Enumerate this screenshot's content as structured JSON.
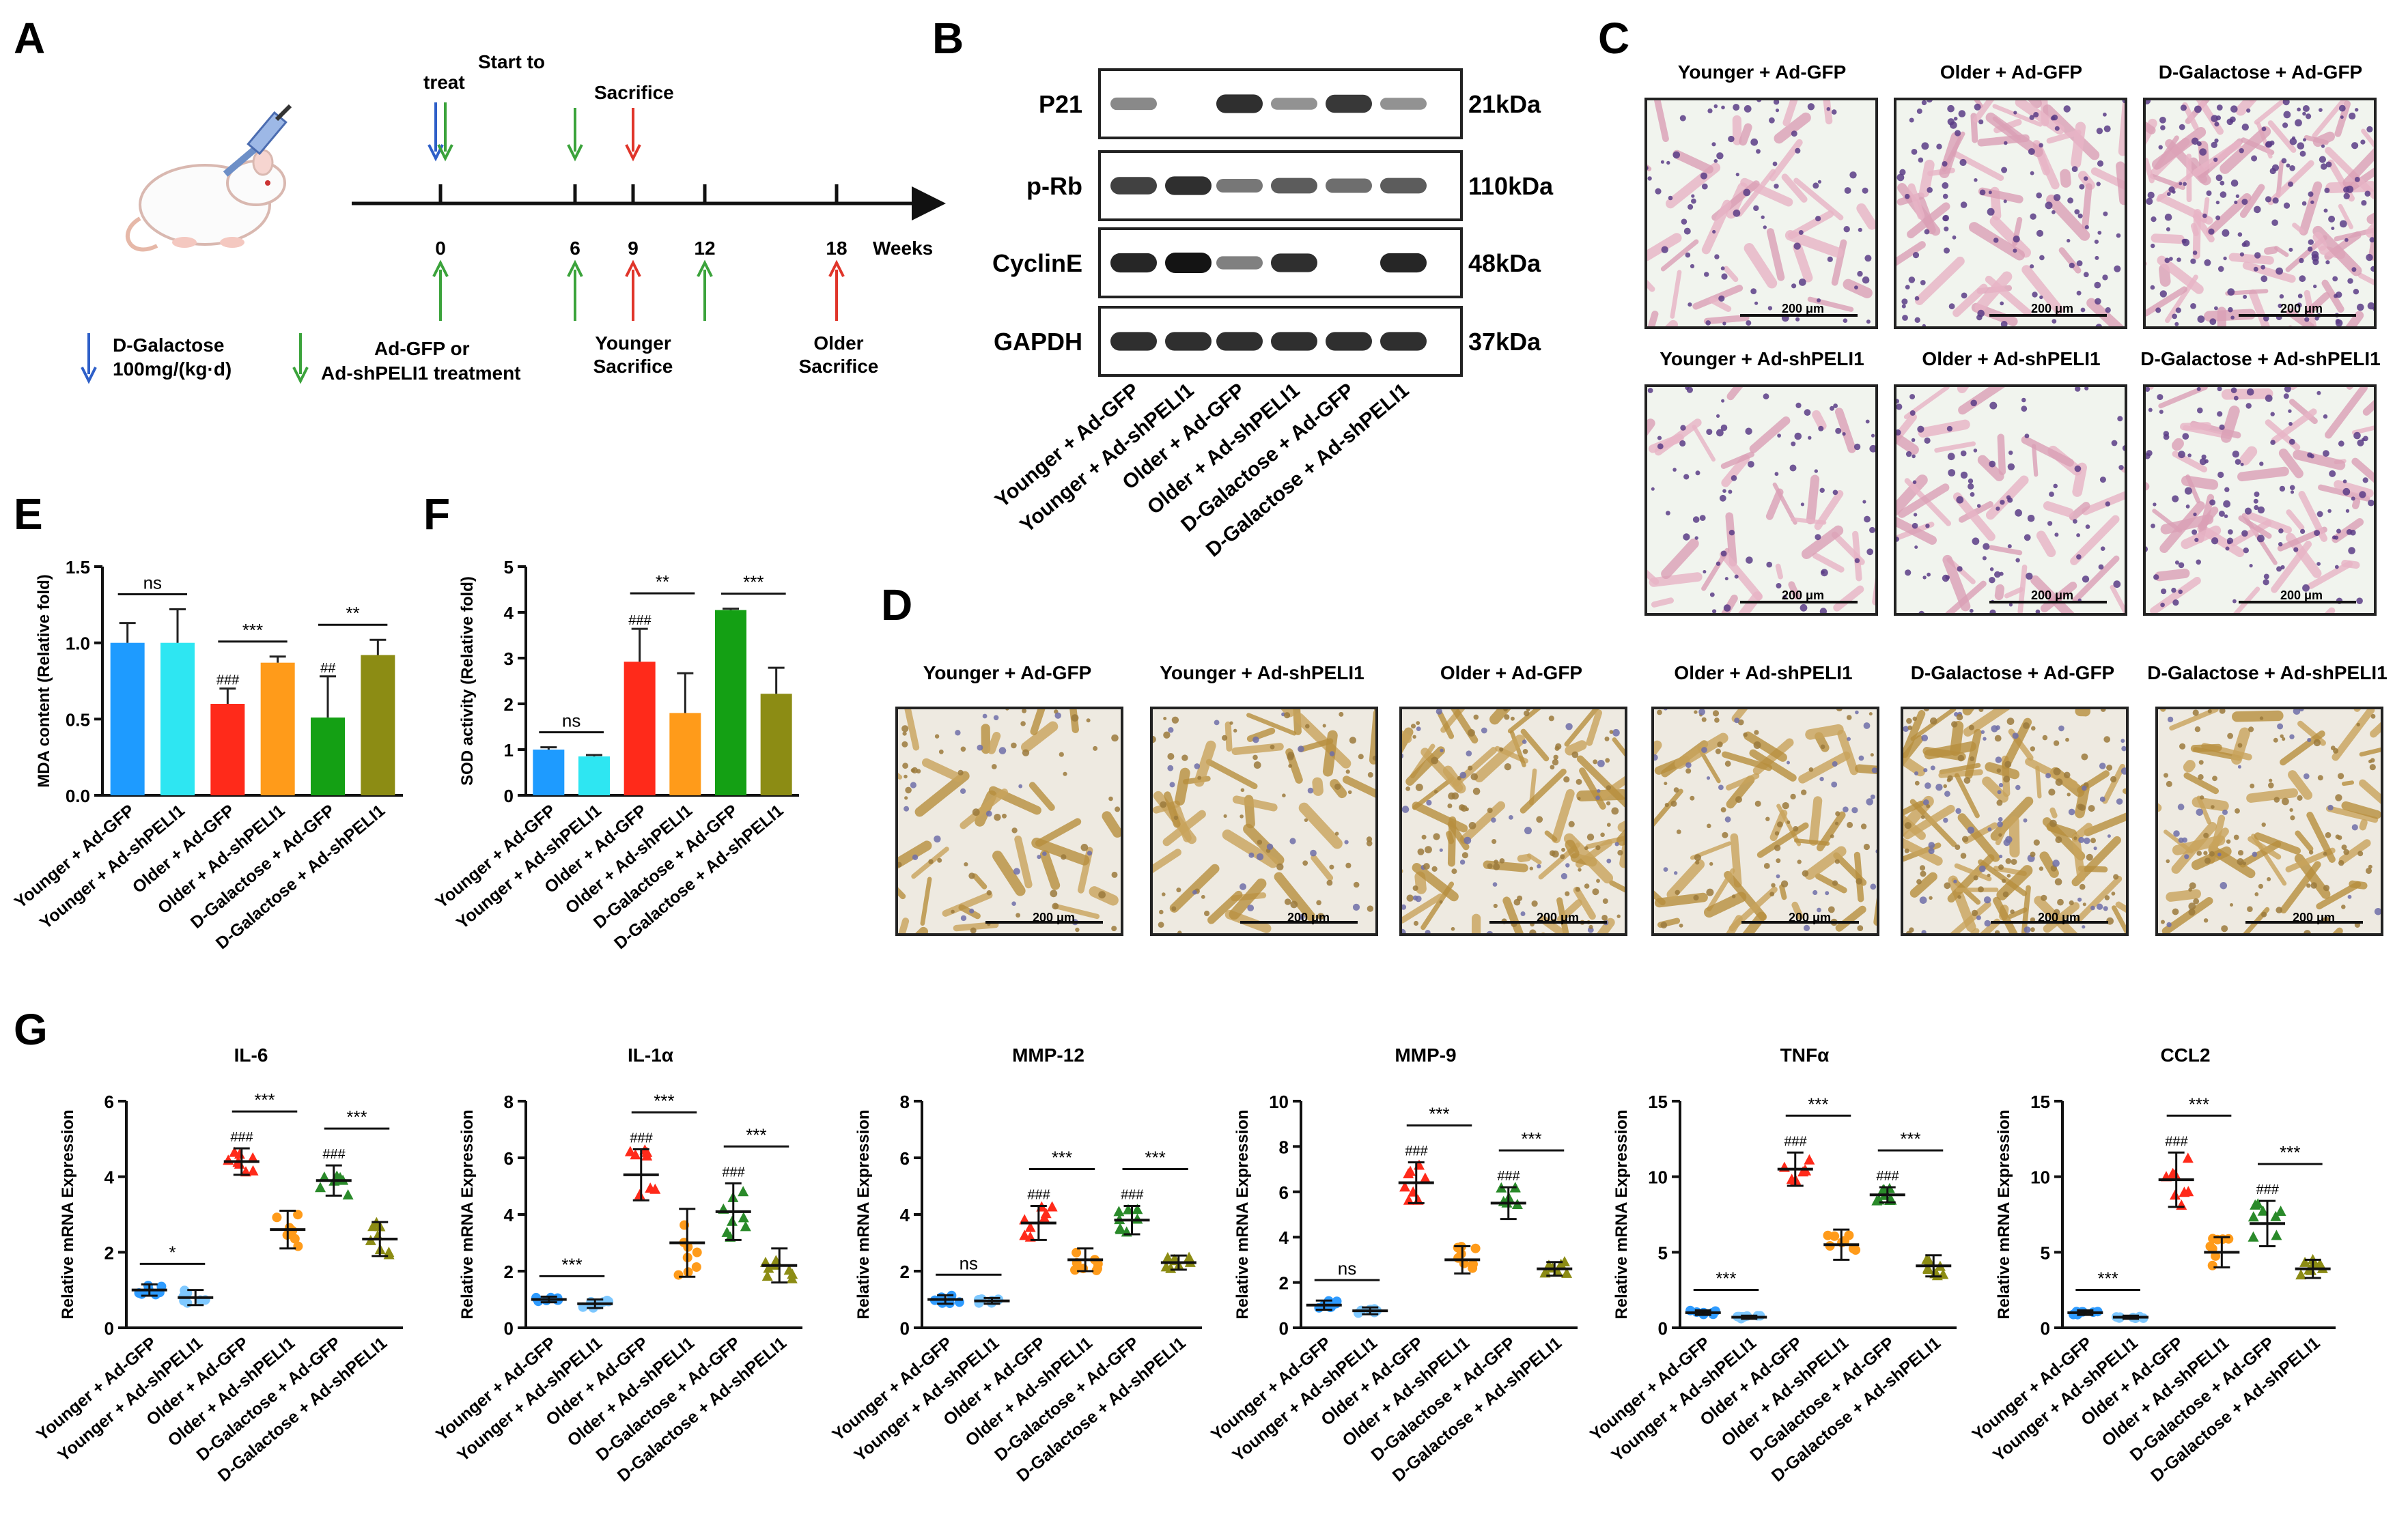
{
  "panel_labels": {
    "A": "A",
    "B": "B",
    "C": "C",
    "D": "D",
    "E": "E",
    "F": "F",
    "G": "G"
  },
  "groups": [
    "Younger + Ad-GFP",
    "Younger + Ad-shPELI1",
    "Older + Ad-GFP",
    "Older + Ad-shPELI1",
    "D-Galactose + Ad-GFP",
    "D-Galactose + Ad-shPELI1"
  ],
  "group_colors": [
    "#1E9BFF",
    "#2EE6F2",
    "#FF2A1A",
    "#FF9B1A",
    "#14A014",
    "#8C8C14"
  ],
  "g_group_colors": [
    "#2E9BFF",
    "#7EC8FF",
    "#FF2A1A",
    "#FF9B1A",
    "#2A8A2A",
    "#8C8C14"
  ],
  "panelA": {
    "start_label_1": "Start to",
    "start_label_2": "treat",
    "sacrifice_top": "Sacrifice",
    "ticks": [
      "0",
      "6",
      "9",
      "12",
      "18"
    ],
    "weeks": "Weeks",
    "legend_galactose_1": "D-Galactose",
    "legend_galactose_2": "100mg/(kg·d)",
    "legend_treat_1": "Ad-GFP or",
    "legend_treat_2": "Ad-shPELI1  treatment",
    "younger_sacrifice_1": "Younger",
    "younger_sacrifice_2": "Sacrifice",
    "older_sacrifice_1": "Older",
    "older_sacrifice_2": "Sacrifice"
  },
  "panelB": {
    "proteins": [
      "P21",
      "p-Rb",
      "CyclinE",
      "GAPDH"
    ],
    "weights": [
      "21kDa",
      "110kDa",
      "48kDa",
      "37kDa"
    ],
    "band_intensity": [
      [
        0.35,
        0.05,
        0.85,
        0.3,
        0.8,
        0.3
      ],
      [
        0.75,
        0.85,
        0.45,
        0.6,
        0.5,
        0.6
      ],
      [
        0.9,
        1.0,
        0.4,
        0.85,
        0.05,
        0.9
      ],
      [
        0.85,
        0.85,
        0.85,
        0.85,
        0.85,
        0.85
      ]
    ]
  },
  "panelC": {
    "titles": [
      "Younger + Ad-GFP",
      "Older + Ad-GFP",
      "D-Galactose + Ad-GFP",
      "Younger + Ad-shPELI1",
      "Older + Ad-shPELI1",
      "D-Galactose + Ad-shPELI1"
    ],
    "scale": "200 μm"
  },
  "panelD": {
    "titles": [
      "Younger + Ad-GFP",
      "Younger + Ad-shPELI1",
      "Older + Ad-GFP",
      "Older + Ad-shPELI1",
      "D-Galactose + Ad-GFP",
      "D-Galactose + Ad-shPELI1"
    ],
    "scale": "200 μm"
  },
  "chart_data": [
    {
      "panel": "E",
      "type": "bar",
      "ylabel": "MDA content (Relative fold)",
      "ylim": [
        0,
        1.5
      ],
      "yticks": [
        "0.0",
        "0.5",
        "1.0",
        "1.5"
      ],
      "categories": [
        "Younger + Ad-GFP",
        "Younger + Ad-shPELI1",
        "Older + Ad-GFP",
        "Older + Ad-shPELI1",
        "D-Galactose + Ad-GFP",
        "D-Galactose + Ad-shPELI1"
      ],
      "values": [
        1.0,
        1.0,
        0.6,
        0.87,
        0.51,
        0.92
      ],
      "errors": [
        0.13,
        0.22,
        0.1,
        0.04,
        0.27,
        0.1
      ],
      "hash_marks": [
        "",
        "",
        "###",
        "",
        "##",
        ""
      ],
      "comparisons": [
        {
          "from": 0,
          "to": 1,
          "label": "ns"
        },
        {
          "from": 2,
          "to": 3,
          "label": "***"
        },
        {
          "from": 4,
          "to": 5,
          "label": "**"
        }
      ]
    },
    {
      "panel": "F",
      "type": "bar",
      "ylabel": "SOD activity (Relative fold)",
      "ylim": [
        0,
        5
      ],
      "yticks": [
        "0",
        "1",
        "2",
        "3",
        "4",
        "5"
      ],
      "categories": [
        "Younger + Ad-GFP",
        "Younger + Ad-shPELI1",
        "Older + Ad-GFP",
        "Older + Ad-shPELI1",
        "D-Galactose + Ad-GFP",
        "D-Galactose + Ad-shPELI1"
      ],
      "values": [
        1.0,
        0.85,
        2.92,
        1.8,
        4.05,
        2.22
      ],
      "errors": [
        0.05,
        0.03,
        0.72,
        0.87,
        0.03,
        0.57
      ],
      "hash_marks": [
        "",
        "",
        "###",
        "",
        "",
        ""
      ],
      "comparisons": [
        {
          "from": 0,
          "to": 1,
          "label": "ns"
        },
        {
          "from": 2,
          "to": 3,
          "label": "**"
        },
        {
          "from": 4,
          "to": 5,
          "label": "***"
        }
      ]
    },
    {
      "panel": "G",
      "type": "scatter",
      "title": "IL-6",
      "ylabel": "Relative mRNA Expression",
      "ylim": [
        0,
        6
      ],
      "yticks": [
        "0",
        "2",
        "4",
        "6"
      ],
      "categories": [
        "Younger + Ad-GFP",
        "Younger + Ad-shPELI1",
        "Older + Ad-GFP",
        "Older + Ad-shPELI1",
        "D-Galactose + Ad-GFP",
        "D-Galactose + Ad-shPELI1"
      ],
      "means": [
        1.0,
        0.8,
        4.4,
        2.6,
        3.9,
        2.35
      ],
      "sds": [
        0.15,
        0.2,
        0.35,
        0.5,
        0.4,
        0.45
      ],
      "hash_marks": [
        "",
        "",
        "###",
        "",
        "###",
        ""
      ],
      "comparisons": [
        {
          "from": 0,
          "to": 1,
          "label": "*"
        },
        {
          "from": 2,
          "to": 3,
          "label": "***"
        },
        {
          "from": 4,
          "to": 5,
          "label": "***"
        }
      ]
    },
    {
      "panel": "G",
      "type": "scatter",
      "title": "IL-1α",
      "ylabel": "Relative mRNA Expression",
      "ylim": [
        0,
        8
      ],
      "yticks": [
        "0",
        "2",
        "4",
        "6",
        "8"
      ],
      "categories": [
        "Younger + Ad-GFP",
        "Younger + Ad-shPELI1",
        "Older + Ad-GFP",
        "Older + Ad-shPELI1",
        "D-Galactose + Ad-GFP",
        "D-Galactose + Ad-shPELI1"
      ],
      "means": [
        1.0,
        0.85,
        5.4,
        3.0,
        4.1,
        2.2
      ],
      "sds": [
        0.1,
        0.15,
        0.9,
        1.2,
        1.0,
        0.6
      ],
      "hash_marks": [
        "",
        "",
        "###",
        "",
        "###",
        ""
      ],
      "comparisons": [
        {
          "from": 0,
          "to": 1,
          "label": "***"
        },
        {
          "from": 2,
          "to": 3,
          "label": "***"
        },
        {
          "from": 4,
          "to": 5,
          "label": "***"
        }
      ]
    },
    {
      "panel": "G",
      "type": "scatter",
      "title": "MMP-12",
      "ylabel": "Relative mRNA Expression",
      "ylim": [
        0,
        8
      ],
      "yticks": [
        "0",
        "2",
        "4",
        "6",
        "8"
      ],
      "categories": [
        "Younger + Ad-GFP",
        "Younger + Ad-shPELI1",
        "Older + Ad-GFP",
        "Older + Ad-shPELI1",
        "D-Galactose + Ad-GFP",
        "D-Galactose + Ad-shPELI1"
      ],
      "means": [
        1.0,
        0.95,
        3.7,
        2.4,
        3.8,
        2.3
      ],
      "sds": [
        0.15,
        0.1,
        0.6,
        0.4,
        0.5,
        0.25
      ],
      "hash_marks": [
        "",
        "",
        "###",
        "",
        "###",
        ""
      ],
      "comparisons": [
        {
          "from": 0,
          "to": 1,
          "label": "ns"
        },
        {
          "from": 2,
          "to": 3,
          "label": "***"
        },
        {
          "from": 4,
          "to": 5,
          "label": "***"
        }
      ]
    },
    {
      "panel": "G",
      "type": "scatter",
      "title": "MMP-9",
      "ylabel": "Relative mRNA Expression",
      "ylim": [
        0,
        10
      ],
      "yticks": [
        "0",
        "2",
        "4",
        "6",
        "8",
        "10"
      ],
      "categories": [
        "Younger + Ad-GFP",
        "Younger + Ad-shPELI1",
        "Older + Ad-GFP",
        "Older + Ad-shPELI1",
        "D-Galactose + Ad-GFP",
        "D-Galactose + Ad-shPELI1"
      ],
      "means": [
        1.0,
        0.75,
        6.4,
        3.0,
        5.5,
        2.6
      ],
      "sds": [
        0.2,
        0.15,
        0.9,
        0.6,
        0.7,
        0.3
      ],
      "hash_marks": [
        "",
        "",
        "###",
        "",
        "###",
        ""
      ],
      "comparisons": [
        {
          "from": 0,
          "to": 1,
          "label": "ns"
        },
        {
          "from": 2,
          "to": 3,
          "label": "***"
        },
        {
          "from": 4,
          "to": 5,
          "label": "***"
        }
      ]
    },
    {
      "panel": "G",
      "type": "scatter",
      "title": "TNFα",
      "ylabel": "Relative mRNA Expression",
      "ylim": [
        0,
        15
      ],
      "yticks": [
        "0",
        "5",
        "10",
        "15"
      ],
      "categories": [
        "Younger + Ad-GFP",
        "Younger + Ad-shPELI1",
        "Older + Ad-GFP",
        "Older + Ad-shPELI1",
        "D-Galactose + Ad-GFP",
        "D-Galactose + Ad-shPELI1"
      ],
      "means": [
        1.0,
        0.7,
        10.5,
        5.5,
        8.8,
        4.1
      ],
      "sds": [
        0.15,
        0.1,
        1.1,
        1.0,
        0.5,
        0.7
      ],
      "hash_marks": [
        "",
        "",
        "###",
        "",
        "###",
        ""
      ],
      "comparisons": [
        {
          "from": 0,
          "to": 1,
          "label": "***"
        },
        {
          "from": 2,
          "to": 3,
          "label": "***"
        },
        {
          "from": 4,
          "to": 5,
          "label": "***"
        }
      ]
    },
    {
      "panel": "G",
      "type": "scatter",
      "title": "CCL2",
      "ylabel": "Relative mRNA Expression",
      "ylim": [
        0,
        15
      ],
      "yticks": [
        "0",
        "5",
        "10",
        "15"
      ],
      "categories": [
        "Younger + Ad-GFP",
        "Younger + Ad-shPELI1",
        "Older + Ad-GFP",
        "Older + Ad-shPELI1",
        "D-Galactose + Ad-GFP",
        "D-Galactose + Ad-shPELI1"
      ],
      "means": [
        1.0,
        0.7,
        9.8,
        5.0,
        6.9,
        3.9
      ],
      "sds": [
        0.15,
        0.1,
        1.8,
        1.0,
        1.5,
        0.6
      ],
      "hash_marks": [
        "",
        "",
        "###",
        "",
        "###",
        ""
      ],
      "comparisons": [
        {
          "from": 0,
          "to": 1,
          "label": "***"
        },
        {
          "from": 2,
          "to": 3,
          "label": "***"
        },
        {
          "from": 4,
          "to": 5,
          "label": "***"
        }
      ]
    }
  ]
}
